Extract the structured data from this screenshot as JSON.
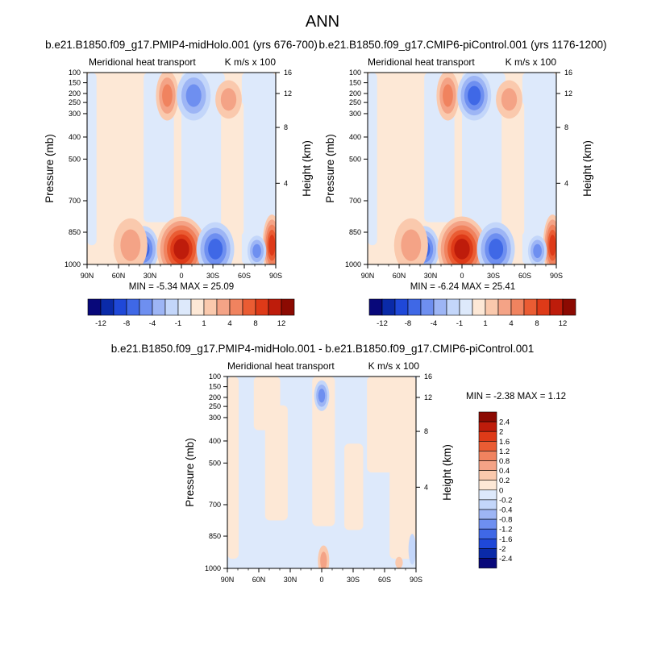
{
  "page_title": "ANN",
  "chart_data": [
    {
      "type": "heatmap",
      "title": "b.e21.B1850.f09_g17.PMIP4-midHolo.001 (yrs 676-700)",
      "subtitle_left": "Meridional heat transport",
      "subtitle_right": "K m/s x 100",
      "ylabel": "Pressure (mb)",
      "ylabel_right": "Height (km)",
      "x_ticks": [
        "90N",
        "60N",
        "30N",
        "0",
        "30S",
        "60S",
        "90S"
      ],
      "y_ticks": [
        "100",
        "150",
        "200",
        "250",
        "300",
        "400",
        "500",
        "700",
        "850",
        "1000"
      ],
      "y_ticks_right": [
        "16",
        "12",
        "8",
        "4"
      ],
      "min_label": "MIN =  -5.34   MAX =  25.09",
      "colorbar_labels": [
        "-12",
        "-8",
        "-4",
        "-1",
        "1",
        "4",
        "8",
        "12"
      ],
      "colorbar_orientation": "horizontal"
    },
    {
      "type": "heatmap",
      "title": "b.e21.B1850.f09_g17.CMIP6-piControl.001 (yrs 1176-1200)",
      "subtitle_left": "Meridional heat transport",
      "subtitle_right": "K m/s x 100",
      "ylabel": "Pressure (mb)",
      "ylabel_right": "Height (km)",
      "x_ticks": [
        "90N",
        "60N",
        "30N",
        "0",
        "30S",
        "60S",
        "90S"
      ],
      "y_ticks": [
        "100",
        "150",
        "200",
        "250",
        "300",
        "400",
        "500",
        "700",
        "850",
        "1000"
      ],
      "y_ticks_right": [
        "16",
        "12",
        "8",
        "4"
      ],
      "min_label": "MIN =  -6.24   MAX =  25.41",
      "colorbar_labels": [
        "-12",
        "-8",
        "-4",
        "-1",
        "1",
        "4",
        "8",
        "12"
      ],
      "colorbar_orientation": "horizontal"
    },
    {
      "type": "heatmap",
      "title": "b.e21.B1850.f09_g17.PMIP4-midHolo.001 - b.e21.B1850.f09_g17.CMIP6-piControl.001",
      "subtitle_left": "Meridional heat transport",
      "subtitle_right": "K m/s x 100",
      "ylabel": "Pressure (mb)",
      "ylabel_right": "Height (km)",
      "x_ticks": [
        "90N",
        "60N",
        "30N",
        "0",
        "30S",
        "60S",
        "90S"
      ],
      "y_ticks": [
        "100",
        "150",
        "200",
        "250",
        "300",
        "400",
        "500",
        "700",
        "850",
        "1000"
      ],
      "y_ticks_right": [
        "16",
        "12",
        "8",
        "4"
      ],
      "min_label": "MIN =  -2.38   MAX =   1.12",
      "colorbar_labels": [
        "2.4",
        "2",
        "1.6",
        "1.2",
        "0.8",
        "0.4",
        "0.2",
        "0",
        "-0.2",
        "-0.4",
        "-0.8",
        "-1.2",
        "-1.6",
        "-2",
        "-2.4"
      ],
      "colorbar_orientation": "vertical"
    }
  ],
  "colors": {
    "cool": [
      "#08087a",
      "#0a2aa8",
      "#1f48d8",
      "#3f68e6",
      "#6e8ff0",
      "#9db5f5",
      "#c3d6fa",
      "#dde9fb"
    ],
    "warm": [
      "#fde8d6",
      "#fac9ad",
      "#f4a386",
      "#f0835f",
      "#ea5c33",
      "#de3a18",
      "#be1c0b",
      "#8c0a02"
    ],
    "neutral_pos": "#fde8d6",
    "neutral_neg": "#dde9fb"
  }
}
